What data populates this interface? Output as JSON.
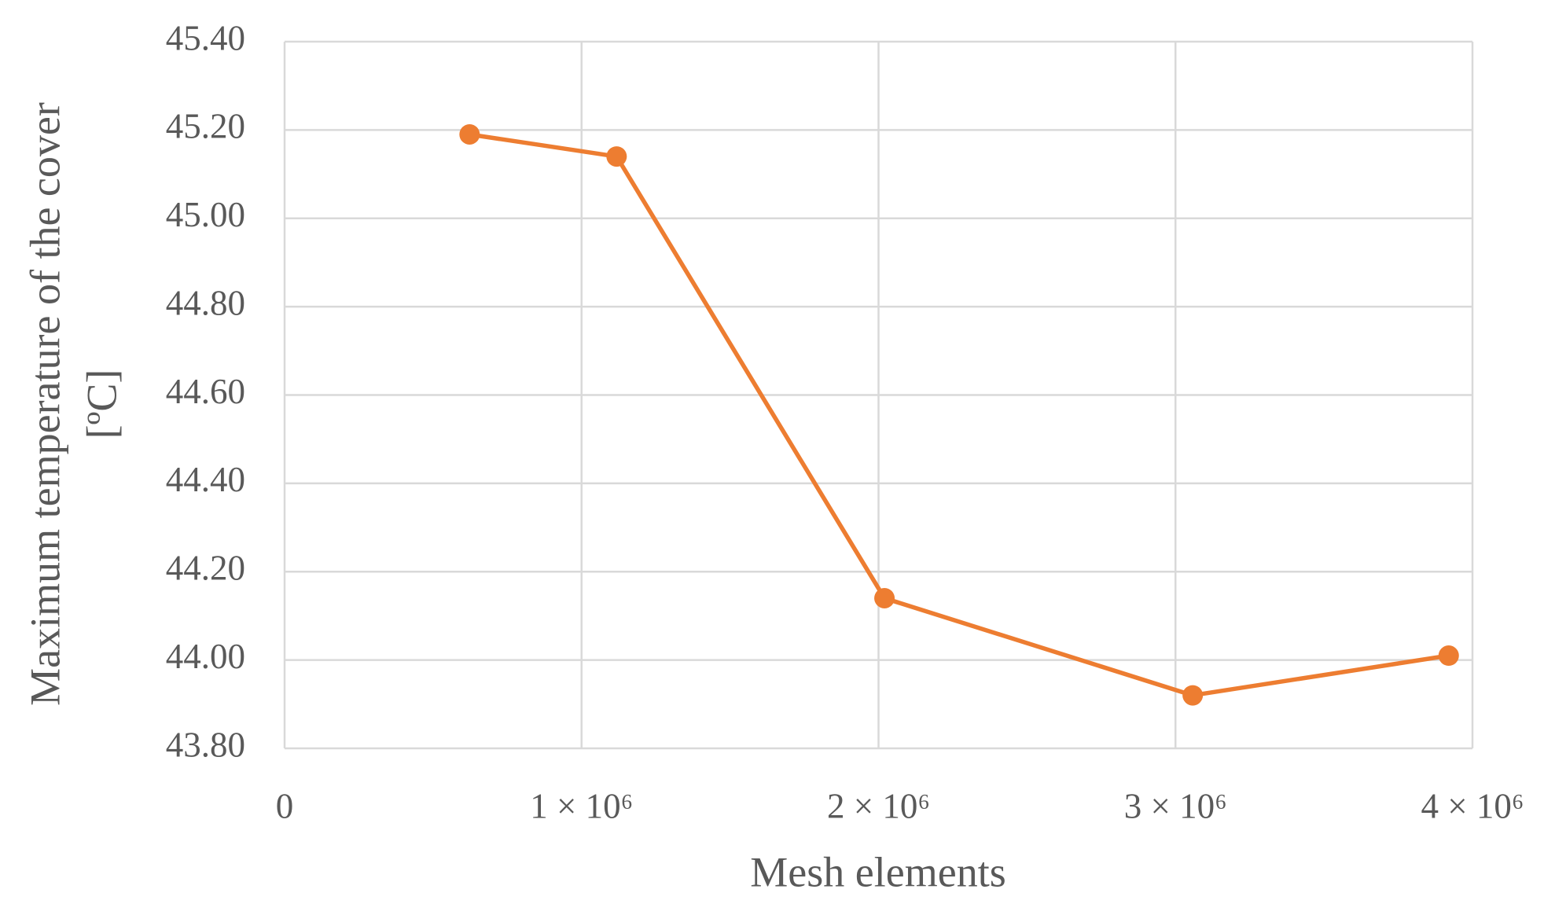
{
  "chart_data": {
    "type": "line",
    "x_label": "Mesh elements",
    "y_label": [
      "Maximum temperature of the cover",
      "[ºC]"
    ],
    "x": [
      623000,
      1118000,
      2020000,
      3058000,
      3920000
    ],
    "series": [
      {
        "name": "Maximum temperature",
        "color": "#ed7d31",
        "values": [
          45.19,
          45.14,
          44.14,
          43.92,
          44.01
        ]
      }
    ],
    "xlim": [
      0,
      4000000
    ],
    "xticks": [
      0,
      {
        "value": 1000000,
        "label": "1 × 10⁶"
      },
      {
        "value": 2000000,
        "label": "2 × 10⁶"
      },
      {
        "value": 3000000,
        "label": "3 × 10⁶"
      },
      {
        "value": 4000000,
        "label": "4 × 10⁶"
      }
    ],
    "ylim": [
      43.8,
      45.4
    ],
    "yticks": [
      {
        "value": 43.8,
        "label": "43.80"
      },
      {
        "value": 44,
        "label": "44.00"
      },
      {
        "value": 44.2,
        "label": "44.20"
      },
      {
        "value": 44.4,
        "label": "44.40"
      },
      {
        "value": 44.6,
        "label": "44.60"
      },
      {
        "value": 44.8,
        "label": "44.80"
      },
      {
        "value": 45,
        "label": "45.00"
      },
      {
        "value": 45.2,
        "label": "45.20"
      },
      {
        "value": 45.4,
        "label": "45.40"
      }
    ],
    "grid": true
  }
}
